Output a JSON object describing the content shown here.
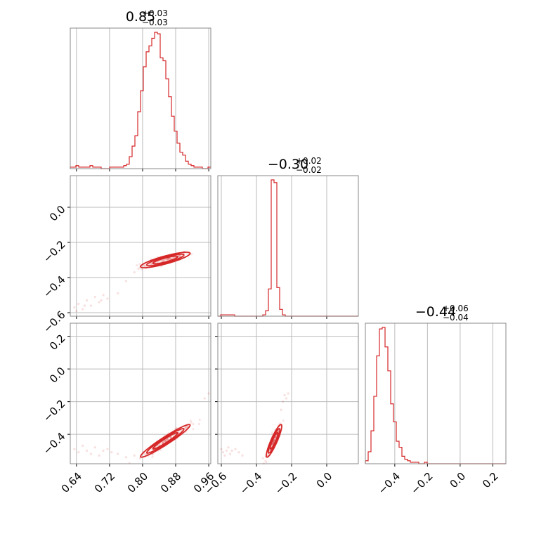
{
  "chart_data": {
    "type": "corner",
    "color": "#d62728",
    "grid": true,
    "x_range": {
      "p0": [
        0.625,
        0.965
      ],
      "p1": [
        -0.62,
        0.18
      ],
      "p2": [
        -0.58,
        0.28
      ]
    },
    "y_range": {
      "p1": [
        -0.62,
        0.18
      ],
      "p2": [
        -0.58,
        0.28
      ]
    },
    "titles": [
      {
        "value": "0.85",
        "plus": "+0.03",
        "minus": "−0.03"
      },
      {
        "value": "−0.30",
        "plus": "+0.02",
        "minus": "−0.02"
      },
      {
        "value": "−0.44",
        "plus": "+0.06",
        "minus": "−0.04"
      }
    ],
    "ticks": {
      "p0": {
        "values": [
          0.64,
          0.72,
          0.8,
          0.88,
          0.96
        ],
        "labels": [
          "0.64",
          "0.72",
          "0.80",
          "0.88",
          "0.96"
        ]
      },
      "p1": {
        "values": [
          -0.6,
          -0.4,
          -0.2,
          0.0
        ],
        "labels": [
          "−0.6",
          "−0.4",
          "−0.2",
          "0.0"
        ]
      },
      "p2_x": {
        "values": [
          -0.4,
          -0.2,
          0.0,
          0.2
        ],
        "labels": [
          "−0.4",
          "−0.2",
          "0.0",
          "0.2"
        ]
      },
      "p2_y": {
        "values": [
          -0.4,
          -0.2,
          0.0,
          0.2
        ],
        "labels": [
          "−0.4",
          "−0.2",
          "0.0",
          "0.2"
        ]
      }
    },
    "histograms": [
      {
        "param": "p0",
        "bin_edges": [
          0.625,
          0.6318,
          0.6386,
          0.6454,
          0.6522,
          0.659,
          0.6658,
          0.6726,
          0.6794,
          0.6862,
          0.693,
          0.6998,
          0.7066,
          0.7134,
          0.7202,
          0.727,
          0.7338,
          0.7406,
          0.7474,
          0.7542,
          0.761,
          0.7678,
          0.7746,
          0.7814,
          0.7882,
          0.795,
          0.8018,
          0.8086,
          0.8154,
          0.8222,
          0.829,
          0.8358,
          0.8426,
          0.8494,
          0.8562,
          0.863,
          0.8698,
          0.8766,
          0.8834,
          0.8902,
          0.897,
          0.9038,
          0.9106,
          0.9174,
          0.9242,
          0.931,
          0.9378,
          0.9446,
          0.9514,
          0.9582,
          0.965
        ],
        "counts": [
          1,
          1,
          2,
          1,
          1,
          1,
          1,
          2,
          1,
          1,
          1,
          0,
          0,
          0,
          1,
          1,
          1,
          1,
          1,
          2,
          3,
          8,
          15,
          22,
          38,
          52,
          68,
          78,
          82,
          87,
          91,
          90,
          74,
          72,
          60,
          48,
          35,
          25,
          17,
          11,
          9,
          5,
          3,
          2,
          1,
          1,
          1,
          0,
          0,
          1
        ]
      },
      {
        "param": "p1",
        "bin_edges": [
          -0.62,
          -0.604,
          -0.588,
          -0.572,
          -0.556,
          -0.54,
          -0.524,
          -0.508,
          -0.492,
          -0.476,
          -0.46,
          -0.444,
          -0.428,
          -0.412,
          -0.396,
          -0.38,
          -0.364,
          -0.348,
          -0.332,
          -0.316,
          -0.3,
          -0.284,
          -0.268,
          -0.252,
          -0.236,
          -0.22,
          -0.204,
          -0.188,
          -0.172,
          -0.156,
          -0.14,
          -0.124,
          -0.108,
          -0.092,
          -0.076,
          -0.06,
          -0.044,
          -0.028,
          -0.012,
          0.004,
          0.02,
          0.036,
          0.052,
          0.068,
          0.084,
          0.1,
          0.116,
          0.132,
          0.148,
          0.164,
          0.18
        ],
        "counts": [
          0,
          1,
          1,
          1,
          1,
          1,
          0,
          0,
          0,
          0,
          0,
          0,
          0,
          0,
          0,
          0,
          1,
          4,
          20,
          100,
          98,
          21,
          5,
          1,
          0,
          0,
          0,
          0,
          0,
          0,
          0,
          0,
          0,
          0,
          0,
          0,
          0,
          0,
          0,
          0,
          0,
          0,
          0,
          0,
          0,
          0,
          0,
          0,
          0,
          0
        ]
      },
      {
        "param": "p2",
        "bin_edges": [
          -0.58,
          -0.5628,
          -0.5456,
          -0.5284,
          -0.5112,
          -0.494,
          -0.4768,
          -0.4596,
          -0.4424,
          -0.4252,
          -0.408,
          -0.3908,
          -0.3736,
          -0.3564,
          -0.3392,
          -0.322,
          -0.3048,
          -0.2876,
          -0.2704,
          -0.2532,
          -0.236,
          -0.2188,
          -0.2016,
          -0.1844,
          -0.1672,
          -0.15,
          -0.1328,
          -0.1156,
          -0.0984,
          -0.0812,
          -0.064,
          -0.0468,
          -0.0296,
          -0.0124,
          0.0048,
          0.022,
          0.0392,
          0.0564,
          0.0736,
          0.0908,
          0.108,
          0.1252,
          0.1424,
          0.1596,
          0.1768,
          0.194,
          0.2112,
          0.2284,
          0.2456,
          0.2628,
          0.28
        ],
        "counts": [
          2,
          8,
          22,
          45,
          72,
          90,
          91,
          78,
          62,
          40,
          28,
          15,
          11,
          5,
          3,
          2,
          1,
          1,
          1,
          0,
          0,
          1,
          0,
          0,
          0,
          0,
          0,
          0,
          0,
          0,
          0,
          0,
          0,
          0,
          0,
          0,
          0,
          0,
          0,
          0,
          0,
          0,
          0,
          0,
          0,
          0,
          0,
          0,
          0,
          0
        ]
      }
    ],
    "scatter": [
      {
        "x_param": "p0",
        "y_param": "p1",
        "mean": [
          0.855,
          -0.3
        ],
        "std": [
          0.03,
          0.022
        ],
        "correlation": 0.85,
        "outliers": [
          [
            0.635,
            -0.57
          ],
          [
            0.645,
            -0.55
          ],
          [
            0.655,
            -0.58
          ],
          [
            0.665,
            -0.53
          ],
          [
            0.675,
            -0.56
          ],
          [
            0.685,
            -0.51
          ],
          [
            0.695,
            -0.54
          ],
          [
            0.705,
            -0.5
          ],
          [
            0.715,
            -0.52
          ],
          [
            0.64,
            -0.59
          ],
          [
            0.66,
            -0.56
          ],
          [
            0.7,
            -0.53
          ],
          [
            0.74,
            -0.49
          ],
          [
            0.76,
            -0.42
          ],
          [
            0.78,
            -0.37
          ]
        ]
      },
      {
        "x_param": "p0",
        "y_param": "p2",
        "mean": [
          0.855,
          -0.44
        ],
        "std": [
          0.03,
          0.05
        ],
        "correlation": 0.96,
        "outliers": [
          [
            0.635,
            -0.49
          ],
          [
            0.645,
            -0.51
          ],
          [
            0.655,
            -0.47
          ],
          [
            0.665,
            -0.5
          ],
          [
            0.675,
            -0.52
          ],
          [
            0.685,
            -0.48
          ],
          [
            0.695,
            -0.53
          ],
          [
            0.705,
            -0.5
          ],
          [
            0.715,
            -0.49
          ],
          [
            0.725,
            -0.51
          ],
          [
            0.74,
            -0.52
          ],
          [
            0.76,
            -0.54
          ],
          [
            0.78,
            -0.53
          ],
          [
            0.95,
            -0.18
          ],
          [
            0.96,
            -0.15
          ]
        ]
      },
      {
        "x_param": "p1",
        "y_param": "p2",
        "mean": [
          -0.3,
          -0.44
        ],
        "std": [
          0.022,
          0.05
        ],
        "correlation": 0.9,
        "outliers": [
          [
            -0.6,
            -0.49
          ],
          [
            -0.59,
            -0.51
          ],
          [
            -0.58,
            -0.53
          ],
          [
            -0.57,
            -0.5
          ],
          [
            -0.56,
            -0.48
          ],
          [
            -0.55,
            -0.52
          ],
          [
            -0.54,
            -0.5
          ],
          [
            -0.52,
            -0.49
          ],
          [
            -0.5,
            -0.51
          ],
          [
            -0.48,
            -0.53
          ],
          [
            -0.26,
            -0.25
          ],
          [
            -0.25,
            -0.2
          ],
          [
            -0.24,
            -0.16
          ],
          [
            -0.23,
            -0.18
          ],
          [
            -0.22,
            -0.15
          ]
        ]
      }
    ]
  }
}
